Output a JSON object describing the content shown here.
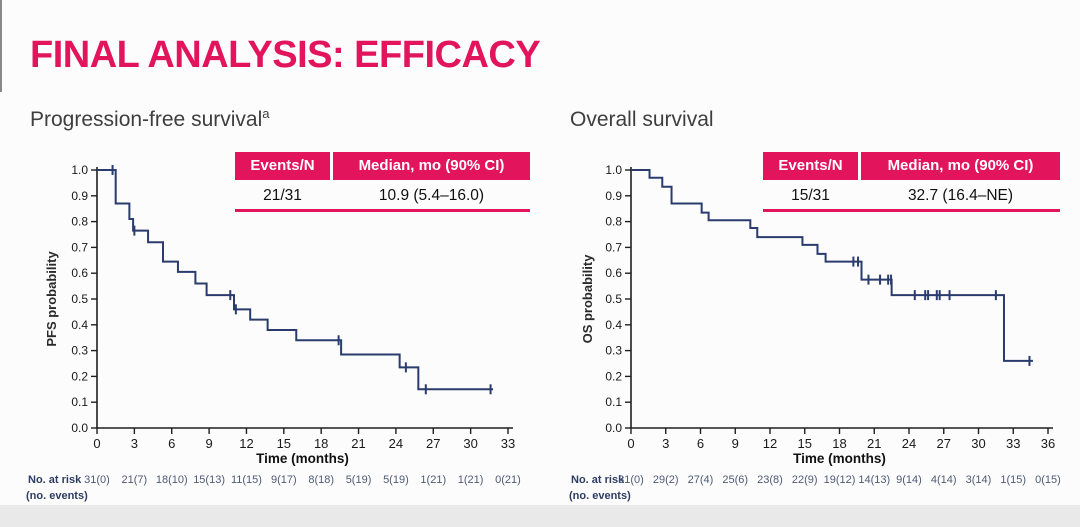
{
  "title": "FINAL ANALYSIS: EFFICACY",
  "colors": {
    "accent": "#e2145c",
    "curve": "#2a3b6e",
    "axis": "#1f1f1f",
    "risk_label": "#2d3c63",
    "risk_text": "#4f5a76"
  },
  "panels": [
    {
      "subtitle": "Progression-free survival",
      "superscript": "a",
      "table": {
        "col1": "Events/N",
        "col2": "Median, mo (90% CI)"
      }
    },
    {
      "subtitle": "Overall survival",
      "superscript": "",
      "table": {
        "col1": "Events/N",
        "col2": "Median, mo (90% CI)"
      }
    }
  ],
  "chart_data": [
    {
      "type": "line",
      "subtype": "kaplan-meier-step",
      "title": "Progression-free survival",
      "ylabel": "PFS probability",
      "xlabel": "Time (months)",
      "xlim": [
        0,
        33
      ],
      "ylim": [
        0.0,
        1.0
      ],
      "xticks": [
        0,
        3,
        6,
        9,
        12,
        15,
        18,
        21,
        24,
        27,
        30,
        33
      ],
      "yticks": [
        0.0,
        0.1,
        0.2,
        0.3,
        0.4,
        0.5,
        0.6,
        0.7,
        0.8,
        0.9,
        1.0
      ],
      "grid": false,
      "events_n": "21/31",
      "median_mo_90ci": "10.9 (5.4–16.0)",
      "steps": [
        [
          0,
          1.0
        ],
        [
          1.5,
          0.87
        ],
        [
          2.6,
          0.81
        ],
        [
          2.9,
          0.765
        ],
        [
          4.1,
          0.72
        ],
        [
          5.3,
          0.645
        ],
        [
          6.5,
          0.605
        ],
        [
          7.9,
          0.56
        ],
        [
          8.8,
          0.515
        ],
        [
          11.0,
          0.46
        ],
        [
          12.3,
          0.42
        ],
        [
          13.7,
          0.38
        ],
        [
          16.0,
          0.34
        ],
        [
          19.6,
          0.285
        ],
        [
          24.3,
          0.235
        ],
        [
          25.8,
          0.15
        ]
      ],
      "curve_end_x": 31.8,
      "censor_marks": [
        [
          1.25,
          1.0
        ],
        [
          3.0,
          0.765
        ],
        [
          10.7,
          0.515
        ],
        [
          11.15,
          0.46
        ],
        [
          19.4,
          0.34
        ],
        [
          24.8,
          0.235
        ],
        [
          26.4,
          0.15
        ],
        [
          31.6,
          0.15
        ]
      ],
      "risk_label": "No. at risk",
      "risk_sublabel": "(no. events)",
      "no_at_risk": [
        "31(0)",
        "21(7)",
        "18(10)",
        "15(13)",
        "11(15)",
        "9(17)",
        "8(18)",
        "5(19)",
        "5(19)",
        "1(21)",
        "1(21)",
        "0(21)"
      ]
    },
    {
      "type": "line",
      "subtype": "kaplan-meier-step",
      "title": "Overall survival",
      "ylabel": "OS probability",
      "xlabel": "Time (months)",
      "xlim": [
        0,
        36
      ],
      "ylim": [
        0.0,
        1.0
      ],
      "xticks": [
        0,
        3,
        6,
        9,
        12,
        15,
        18,
        21,
        24,
        27,
        30,
        33,
        36
      ],
      "yticks": [
        0.0,
        0.1,
        0.2,
        0.3,
        0.4,
        0.5,
        0.6,
        0.7,
        0.8,
        0.9,
        1.0
      ],
      "grid": false,
      "events_n": "15/31",
      "median_mo_90ci": "32.7 (16.4–NE)",
      "steps": [
        [
          0,
          1.0
        ],
        [
          1.6,
          0.97
        ],
        [
          2.7,
          0.935
        ],
        [
          3.5,
          0.87
        ],
        [
          6.1,
          0.835
        ],
        [
          6.7,
          0.805
        ],
        [
          10.3,
          0.775
        ],
        [
          10.9,
          0.74
        ],
        [
          14.8,
          0.71
        ],
        [
          16.1,
          0.675
        ],
        [
          16.8,
          0.645
        ],
        [
          19.9,
          0.575
        ],
        [
          22.5,
          0.515
        ],
        [
          32.2,
          0.26
        ]
      ],
      "curve_end_x": 34.7,
      "censor_marks": [
        [
          19.2,
          0.645
        ],
        [
          19.6,
          0.645
        ],
        [
          20.5,
          0.575
        ],
        [
          21.5,
          0.575
        ],
        [
          22.2,
          0.575
        ],
        [
          22.45,
          0.575
        ],
        [
          24.5,
          0.515
        ],
        [
          25.4,
          0.515
        ],
        [
          25.65,
          0.515
        ],
        [
          26.4,
          0.515
        ],
        [
          26.65,
          0.515
        ],
        [
          27.5,
          0.515
        ],
        [
          31.5,
          0.515
        ],
        [
          34.4,
          0.26
        ]
      ],
      "risk_label": "No. at risk",
      "risk_sublabel": "(no. events)",
      "no_at_risk": [
        "31(0)",
        "29(2)",
        "27(4)",
        "25(6)",
        "23(8)",
        "22(9)",
        "19(12)",
        "14(13)",
        "9(14)",
        "4(14)",
        "3(14)",
        "1(15)",
        "0(15)"
      ]
    }
  ]
}
